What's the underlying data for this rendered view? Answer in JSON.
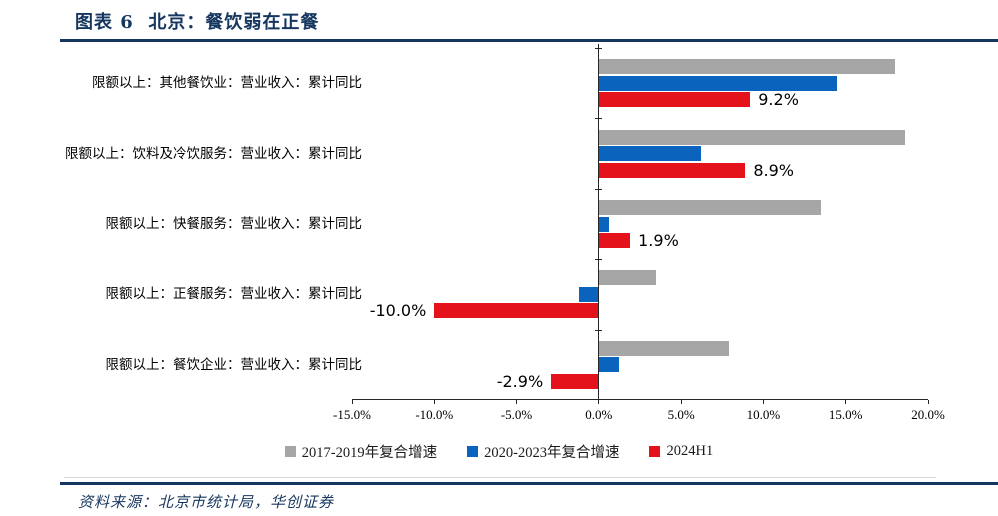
{
  "page": {
    "title": "图表 6  北京：餐饮弱在正餐",
    "source": "资料来源：北京市统计局，华创证券"
  },
  "colors": {
    "navy": "#15365F",
    "gray_series": "#A6A6A6",
    "blue_series": "#0A64BD",
    "red_series": "#E3121B",
    "axis": "#262626"
  },
  "chart_data": {
    "type": "bar",
    "orientation": "horizontal",
    "title": "北京：餐饮弱在正餐",
    "categories": [
      "限额以上：其他餐饮业：营业收入：累计同比",
      "限额以上：饮料及冷饮服务：营业收入：累计同比",
      "限额以上：快餐服务：营业收入：累计同比",
      "限额以上：正餐服务：营业收入：累计同比",
      "限额以上：餐饮企业：营业收入：累计同比"
    ],
    "series": [
      {
        "name": "2017-2019年复合增速",
        "color": "#A6A6A6",
        "values": [
          18.0,
          18.6,
          13.5,
          3.5,
          7.9
        ]
      },
      {
        "name": "2020-2023年复合增速",
        "color": "#0A64BD",
        "values": [
          14.5,
          6.2,
          0.6,
          -1.2,
          1.2
        ]
      },
      {
        "name": "2024H1",
        "color": "#E3121B",
        "values": [
          9.2,
          8.9,
          1.9,
          -10.0,
          -2.9
        ],
        "data_labels": [
          "9.2%",
          "8.9%",
          "1.9%",
          "-10.0%",
          "-2.9%"
        ]
      }
    ],
    "xlabel": "",
    "ylabel": "",
    "xlim": [
      -15,
      20
    ],
    "x_ticks": [
      -15,
      -10,
      -5,
      0,
      5,
      10,
      15,
      20
    ],
    "x_tick_labels": [
      "-15.0%",
      "-10.0%",
      "-5.0%",
      "0.0%",
      "5.0%",
      "10.0%",
      "15.0%",
      "20.0%"
    ],
    "grid": false,
    "legend_position": "bottom",
    "data_labels_series": "2024H1"
  }
}
